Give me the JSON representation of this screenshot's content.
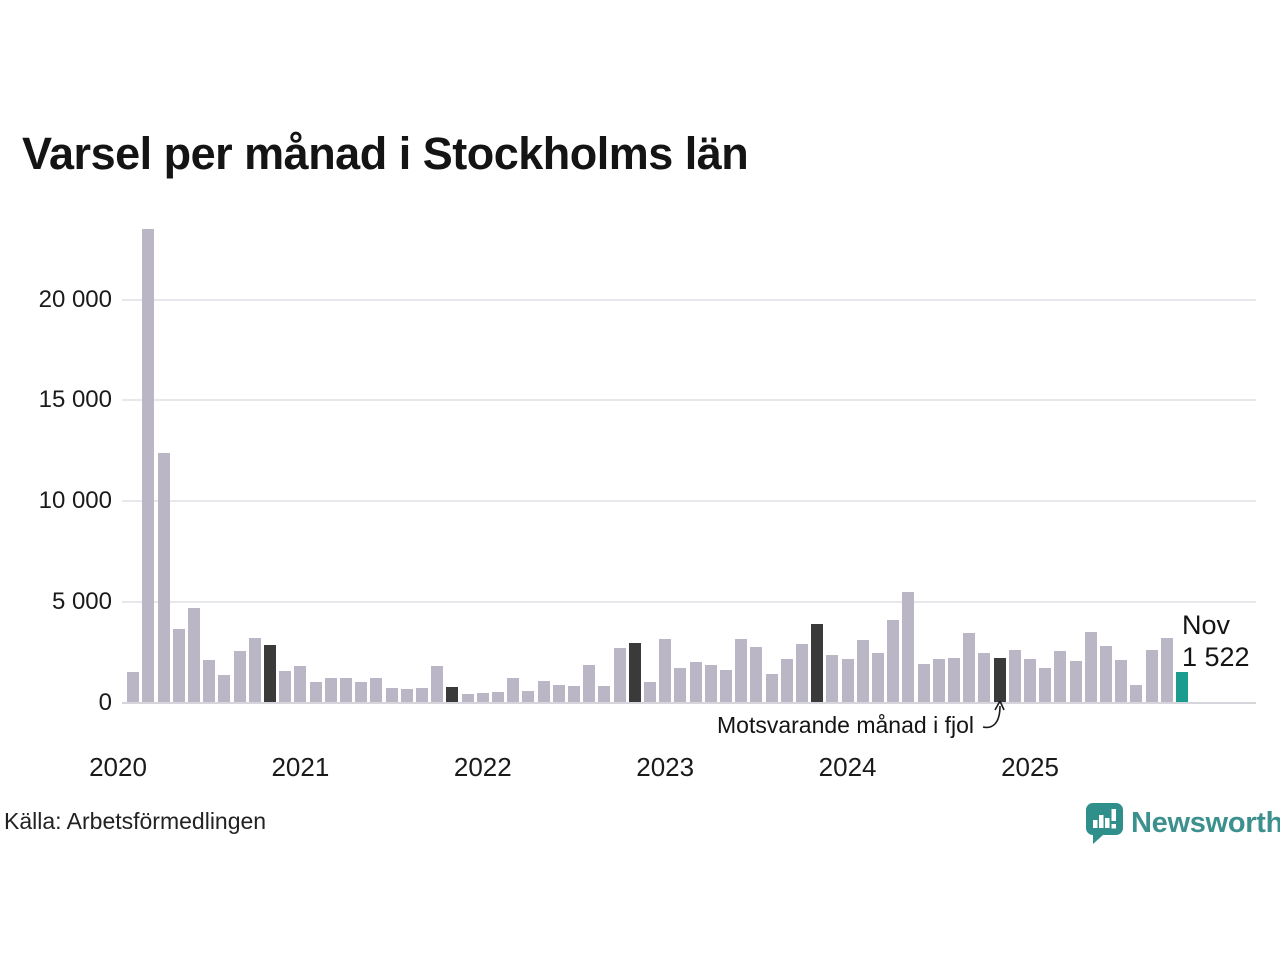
{
  "title": "Varsel per månad i Stockholms län",
  "source_note": "Källa: Arbetsförmedlingen",
  "brand": {
    "name": "Newsworthy",
    "color": "#3c908e"
  },
  "annotations": {
    "latest_label_line1": "Nov",
    "latest_label_line2": "1 522",
    "compare_note": "Motsvarande månad i fjol"
  },
  "chart_data": {
    "type": "bar",
    "title": "Varsel per månad i Stockholms län",
    "xlabel": "",
    "ylabel": "",
    "ylim": [
      0,
      24000
    ],
    "grid": true,
    "yticks": [
      0,
      5000,
      10000,
      15000,
      20000
    ],
    "ytick_labels": [
      "0",
      "5 000",
      "10 000",
      "15 000",
      "20 000"
    ],
    "x_year_labels": [
      "2020",
      "2021",
      "2022",
      "2023",
      "2024",
      "2025"
    ],
    "colors": {
      "default": "#bab6c5",
      "compare": "#3a3a3a",
      "latest": "#1a9c8e"
    },
    "roles_legend": {
      "compare": "Motsvarande månad i fjol (november föregående år)",
      "latest": "Nov 2025: 1 522"
    },
    "months": [
      {
        "month": "2020-02",
        "value": 1500,
        "role": "default"
      },
      {
        "month": "2020-03",
        "value": 23500,
        "role": "default"
      },
      {
        "month": "2020-04",
        "value": 12400,
        "role": "default"
      },
      {
        "month": "2020-05",
        "value": 3650,
        "role": "default"
      },
      {
        "month": "2020-06",
        "value": 4700,
        "role": "default"
      },
      {
        "month": "2020-07",
        "value": 2100,
        "role": "default"
      },
      {
        "month": "2020-08",
        "value": 1350,
        "role": "default"
      },
      {
        "month": "2020-09",
        "value": 2550,
        "role": "default"
      },
      {
        "month": "2020-10",
        "value": 3200,
        "role": "default"
      },
      {
        "month": "2020-11",
        "value": 2850,
        "role": "compare"
      },
      {
        "month": "2020-12",
        "value": 1550,
        "role": "default"
      },
      {
        "month": "2021-01",
        "value": 1800,
        "role": "default"
      },
      {
        "month": "2021-02",
        "value": 1000,
        "role": "default"
      },
      {
        "month": "2021-03",
        "value": 1200,
        "role": "default"
      },
      {
        "month": "2021-04",
        "value": 1200,
        "role": "default"
      },
      {
        "month": "2021-05",
        "value": 1000,
        "role": "default"
      },
      {
        "month": "2021-06",
        "value": 1200,
        "role": "default"
      },
      {
        "month": "2021-07",
        "value": 700,
        "role": "default"
      },
      {
        "month": "2021-08",
        "value": 650,
        "role": "default"
      },
      {
        "month": "2021-09",
        "value": 700,
        "role": "default"
      },
      {
        "month": "2021-10",
        "value": 1800,
        "role": "default"
      },
      {
        "month": "2021-11",
        "value": 750,
        "role": "compare"
      },
      {
        "month": "2021-12",
        "value": 400,
        "role": "default"
      },
      {
        "month": "2022-01",
        "value": 450,
        "role": "default"
      },
      {
        "month": "2022-02",
        "value": 500,
        "role": "default"
      },
      {
        "month": "2022-03",
        "value": 1200,
        "role": "default"
      },
      {
        "month": "2022-04",
        "value": 550,
        "role": "default"
      },
      {
        "month": "2022-05",
        "value": 1050,
        "role": "default"
      },
      {
        "month": "2022-06",
        "value": 850,
        "role": "default"
      },
      {
        "month": "2022-07",
        "value": 800,
        "role": "default"
      },
      {
        "month": "2022-08",
        "value": 1850,
        "role": "default"
      },
      {
        "month": "2022-09",
        "value": 800,
        "role": "default"
      },
      {
        "month": "2022-10",
        "value": 2700,
        "role": "default"
      },
      {
        "month": "2022-11",
        "value": 2950,
        "role": "compare"
      },
      {
        "month": "2022-12",
        "value": 1000,
        "role": "default"
      },
      {
        "month": "2023-01",
        "value": 3150,
        "role": "default"
      },
      {
        "month": "2023-02",
        "value": 1700,
        "role": "default"
      },
      {
        "month": "2023-03",
        "value": 2000,
        "role": "default"
      },
      {
        "month": "2023-04",
        "value": 1850,
        "role": "default"
      },
      {
        "month": "2023-05",
        "value": 1600,
        "role": "default"
      },
      {
        "month": "2023-06",
        "value": 3150,
        "role": "default"
      },
      {
        "month": "2023-07",
        "value": 2750,
        "role": "default"
      },
      {
        "month": "2023-08",
        "value": 1400,
        "role": "default"
      },
      {
        "month": "2023-09",
        "value": 2150,
        "role": "default"
      },
      {
        "month": "2023-10",
        "value": 2900,
        "role": "default"
      },
      {
        "month": "2023-11",
        "value": 3900,
        "role": "compare"
      },
      {
        "month": "2023-12",
        "value": 2350,
        "role": "default"
      },
      {
        "month": "2024-01",
        "value": 2150,
        "role": "default"
      },
      {
        "month": "2024-02",
        "value": 3100,
        "role": "default"
      },
      {
        "month": "2024-03",
        "value": 2450,
        "role": "default"
      },
      {
        "month": "2024-04",
        "value": 4100,
        "role": "default"
      },
      {
        "month": "2024-05",
        "value": 5500,
        "role": "default"
      },
      {
        "month": "2024-06",
        "value": 1900,
        "role": "default"
      },
      {
        "month": "2024-07",
        "value": 2150,
        "role": "default"
      },
      {
        "month": "2024-08",
        "value": 2200,
        "role": "default"
      },
      {
        "month": "2024-09",
        "value": 3450,
        "role": "default"
      },
      {
        "month": "2024-10",
        "value": 2450,
        "role": "default"
      },
      {
        "month": "2024-11",
        "value": 2200,
        "role": "compare"
      },
      {
        "month": "2024-12",
        "value": 2600,
        "role": "default"
      },
      {
        "month": "2025-01",
        "value": 2150,
        "role": "default"
      },
      {
        "month": "2025-02",
        "value": 1700,
        "role": "default"
      },
      {
        "month": "2025-03",
        "value": 2550,
        "role": "default"
      },
      {
        "month": "2025-04",
        "value": 2050,
        "role": "default"
      },
      {
        "month": "2025-05",
        "value": 3500,
        "role": "default"
      },
      {
        "month": "2025-06",
        "value": 2800,
        "role": "default"
      },
      {
        "month": "2025-07",
        "value": 2100,
        "role": "default"
      },
      {
        "month": "2025-08",
        "value": 850,
        "role": "default"
      },
      {
        "month": "2025-09",
        "value": 2600,
        "role": "default"
      },
      {
        "month": "2025-10",
        "value": 3200,
        "role": "default"
      },
      {
        "month": "2025-11",
        "value": 1522,
        "role": "latest"
      }
    ]
  }
}
